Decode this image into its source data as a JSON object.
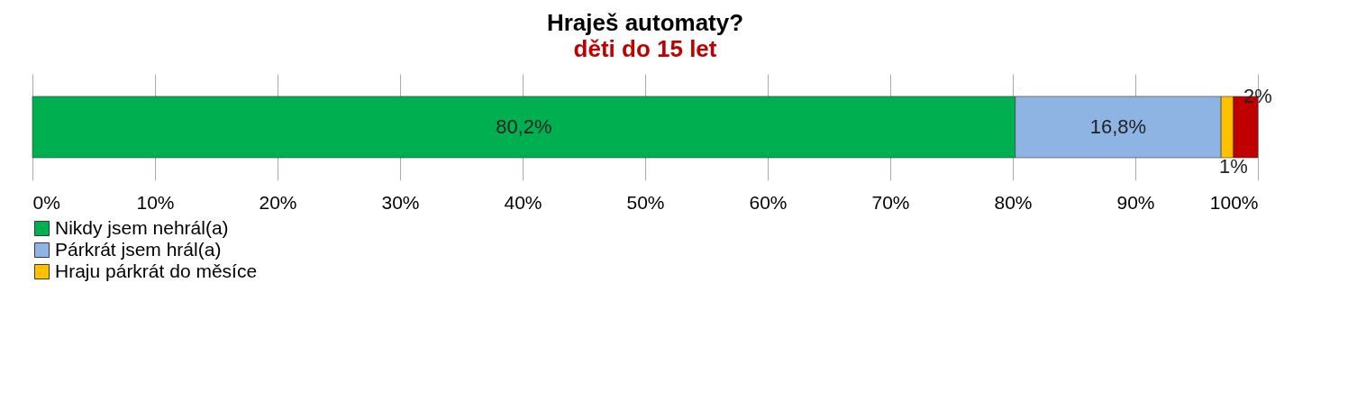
{
  "chart_data": {
    "type": "bar",
    "orientation": "horizontal",
    "stacked": true,
    "title": "Hraješ automaty?",
    "subtitle": "děti do 15 let",
    "categories": [
      null
    ],
    "series": [
      {
        "name": "Nikdy jsem nehrál(a)",
        "color": "#00b050",
        "values": [
          80.2
        ],
        "value_labels": [
          "80,2%"
        ]
      },
      {
        "name": "Párkrát jsem hrál(a)",
        "color": "#8eb4e3",
        "values": [
          16.8
        ],
        "value_labels": [
          "16,8%"
        ]
      },
      {
        "name": "Hraju párkrát do měsíce",
        "color": "#ffc000",
        "values": [
          1
        ],
        "value_labels": [
          "1%"
        ]
      },
      {
        "color": "#c00000",
        "values": [
          2
        ],
        "value_labels": [
          "2%"
        ]
      }
    ],
    "xlim": [
      0,
      100
    ],
    "xticks": [
      {
        "value": 0,
        "label": "0%"
      },
      {
        "value": 10,
        "label": "10%"
      },
      {
        "value": 20,
        "label": "20%"
      },
      {
        "value": 30,
        "label": "30%"
      },
      {
        "value": 40,
        "label": "40%"
      },
      {
        "value": 50,
        "label": "50%"
      },
      {
        "value": 60,
        "label": "60%"
      },
      {
        "value": 70,
        "label": "70%"
      },
      {
        "value": 80,
        "label": "80%"
      },
      {
        "value": 90,
        "label": "90%"
      },
      {
        "value": 100,
        "label": "100%"
      }
    ],
    "grid": "x",
    "legend": "bottom"
  }
}
